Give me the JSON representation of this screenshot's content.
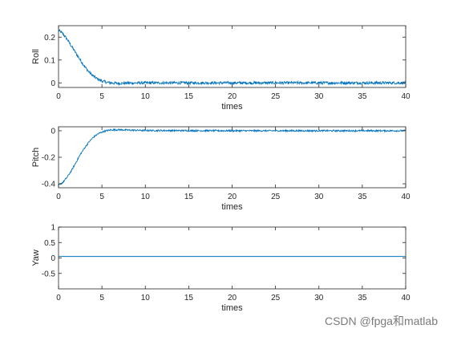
{
  "chart_data": [
    {
      "type": "line",
      "xlabel": "times",
      "ylabel": "Roll",
      "xlim": [
        0,
        40
      ],
      "ylim": [
        -0.02,
        0.25
      ],
      "xticks": [
        0,
        5,
        10,
        15,
        20,
        25,
        30,
        35,
        40
      ],
      "yticks": [
        0,
        0.1,
        0.2
      ],
      "ytick_labels": [
        "0",
        "0.1",
        "0.2"
      ],
      "grid": false,
      "series": [
        {
          "color": "#0072bd",
          "noise": 0.006,
          "x": [
            0,
            0.5,
            1,
            1.5,
            2,
            2.5,
            3,
            3.5,
            4,
            4.5,
            5,
            5.5,
            6,
            7,
            8,
            10,
            15,
            20,
            25,
            30,
            35,
            40
          ],
          "values": [
            0.23,
            0.215,
            0.19,
            0.16,
            0.13,
            0.1,
            0.072,
            0.048,
            0.03,
            0.017,
            0.008,
            0.003,
            0.0,
            -0.002,
            -0.001,
            0.0,
            0.0,
            0.0,
            0.0,
            0.0,
            0.0,
            0.0
          ]
        }
      ]
    },
    {
      "type": "line",
      "xlabel": "times",
      "ylabel": "Pitch",
      "xlim": [
        0,
        40
      ],
      "ylim": [
        -0.43,
        0.03
      ],
      "xticks": [
        0,
        5,
        10,
        15,
        20,
        25,
        30,
        35,
        40
      ],
      "yticks": [
        -0.4,
        -0.2,
        0
      ],
      "ytick_labels": [
        "-0.4",
        "-0.2",
        "0"
      ],
      "grid": false,
      "series": [
        {
          "color": "#0072bd",
          "noise": 0.006,
          "x": [
            0,
            0.5,
            1,
            1.5,
            2,
            2.5,
            3,
            3.5,
            4,
            4.5,
            5,
            5.5,
            6,
            7,
            8,
            10,
            15,
            20,
            25,
            30,
            35,
            40
          ],
          "values": [
            -0.41,
            -0.39,
            -0.35,
            -0.3,
            -0.24,
            -0.18,
            -0.13,
            -0.085,
            -0.05,
            -0.025,
            -0.01,
            0.0,
            0.006,
            0.008,
            0.005,
            0.002,
            0.001,
            0.0,
            0.0,
            0.0,
            0.0,
            0.0
          ]
        }
      ]
    },
    {
      "type": "line",
      "xlabel": "times",
      "ylabel": "Yaw",
      "xlim": [
        0,
        40
      ],
      "ylim": [
        -1,
        1
      ],
      "xticks": [
        0,
        5,
        10,
        15,
        20,
        25,
        30,
        35,
        40
      ],
      "yticks": [
        -0.5,
        0,
        0.5,
        1
      ],
      "ytick_labels": [
        "-0.5",
        "0",
        "0.5",
        "1"
      ],
      "grid": false,
      "series": [
        {
          "color": "#0072bd",
          "noise": 0,
          "x": [
            0,
            40
          ],
          "values": [
            0.05,
            0.05
          ]
        }
      ]
    }
  ],
  "watermark": "CSDN @fpga和matlab"
}
